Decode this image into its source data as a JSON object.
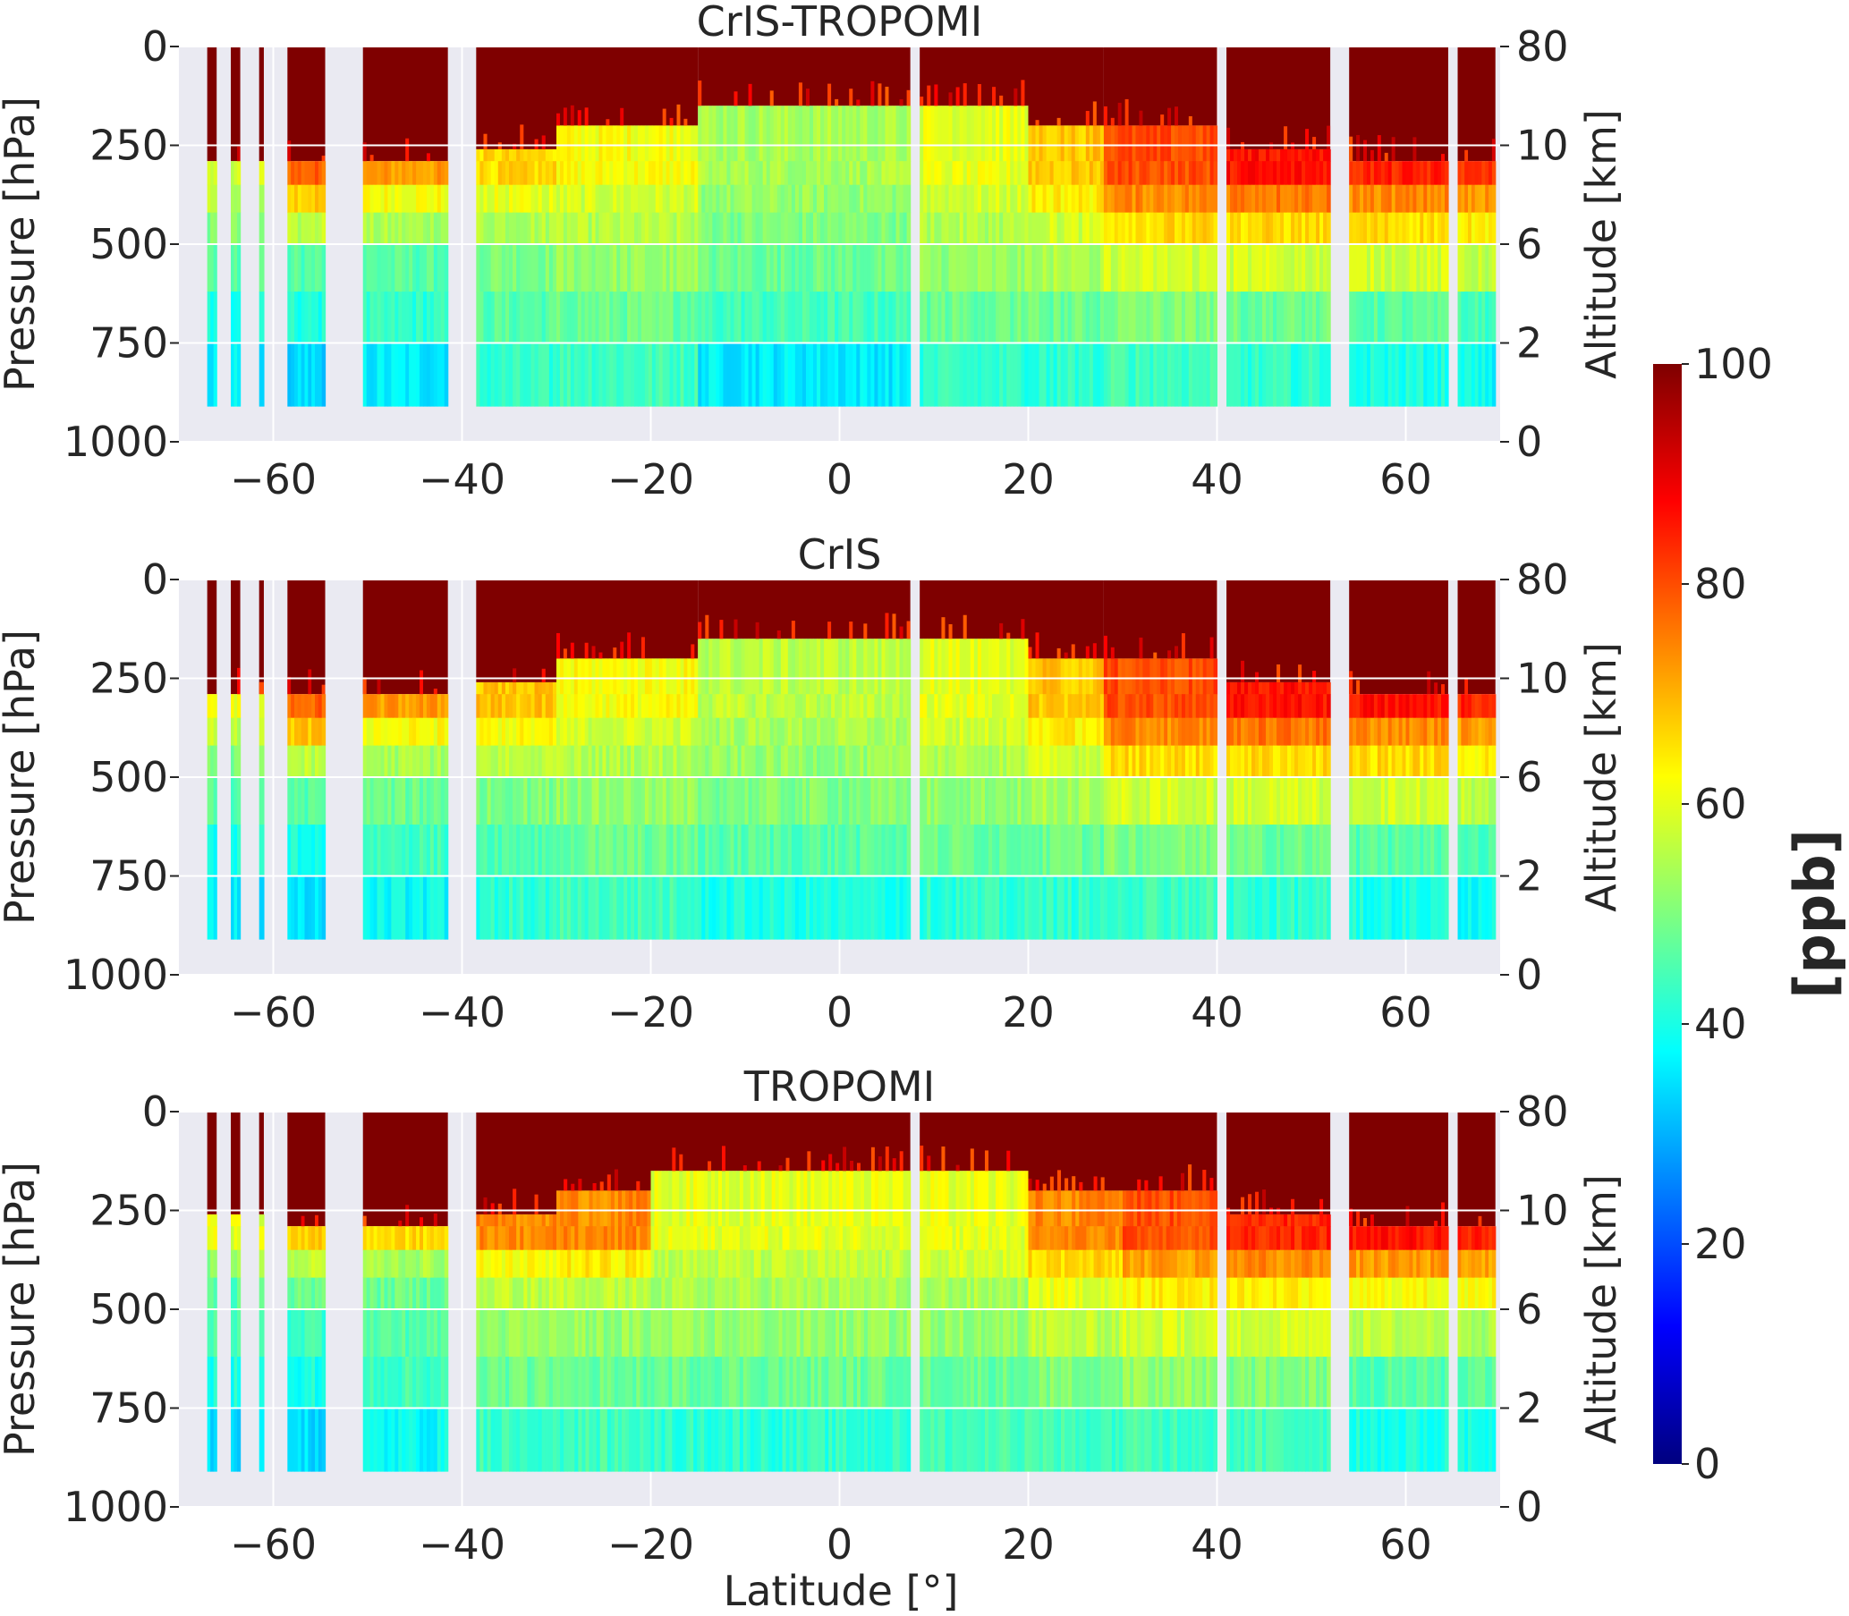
{
  "figure": {
    "xlabel": "Latitude [°]",
    "colorbar": {
      "label": "[ppb]",
      "min": 0,
      "max": 100,
      "ticks": [
        "0",
        "20",
        "40",
        "60",
        "80",
        "100"
      ],
      "colormap": "jet",
      "colors": [
        "#00007f",
        "#0000ff",
        "#007fff",
        "#00ffff",
        "#7fff7f",
        "#ffff00",
        "#ff7f00",
        "#ff0000",
        "#7f0000"
      ]
    },
    "background_color": "#eaeaf2",
    "gridline_color": "#ffffff"
  },
  "chart_data": [
    {
      "type": "heatmap",
      "title": "CrIS-TROPOMI",
      "ylabel": "Pressure [hPa]",
      "ylabel_right": "Altitude [km]",
      "x_ticks": [
        "−60",
        "−40",
        "−20",
        "0",
        "20",
        "40",
        "60"
      ],
      "y_ticks": [
        "0",
        "250",
        "500",
        "750",
        "1000"
      ],
      "y2_ticks": [
        "80",
        "10",
        "6",
        "2",
        "0"
      ],
      "xlim": [
        -70,
        70
      ],
      "ylim": [
        1000,
        0
      ],
      "z_units": "ppb",
      "levels_hPa": [
        0,
        150,
        200,
        260,
        290,
        350,
        420,
        500,
        620,
        750,
        910
      ],
      "latitude_bands": [
        {
          "lat": [
            -67,
            -66
          ],
          "tropopause_hPa": 290,
          "profile_ppb": [
            58,
            55,
            50,
            46,
            40,
            36
          ]
        },
        {
          "lat": [
            -64.5,
            -63.5
          ],
          "tropopause_hPa": 290,
          "profile_ppb": [
            58,
            55,
            50,
            46,
            40,
            36
          ]
        },
        {
          "lat": [
            -61.5,
            -61
          ],
          "tropopause_hPa": 290,
          "profile_ppb": [
            58,
            55,
            50,
            46,
            40,
            36
          ]
        },
        {
          "lat": [
            -58.5,
            -54.5
          ],
          "tropopause_hPa": 290,
          "profile_ppb": [
            78,
            68,
            56,
            46,
            40,
            34
          ]
        },
        {
          "lat": [
            -50.5,
            -41.5
          ],
          "tropopause_hPa": 290,
          "profile_ppb": [
            72,
            62,
            54,
            46,
            42,
            36
          ]
        },
        {
          "lat": [
            -38.5,
            -30
          ],
          "tropopause_hPa": 260,
          "profile_ppb": [
            66,
            60,
            55,
            50,
            46,
            42
          ]
        },
        {
          "lat": [
            -30,
            -15
          ],
          "tropopause_hPa": 200,
          "profile_ppb": [
            62,
            58,
            55,
            52,
            48,
            44
          ]
        },
        {
          "lat": [
            -15,
            7.5
          ],
          "tropopause_hPa": 150,
          "profile_ppb": [
            54,
            52,
            50,
            48,
            44,
            36
          ]
        },
        {
          "lat": [
            8.5,
            20
          ],
          "tropopause_hPa": 150,
          "profile_ppb": [
            60,
            58,
            55,
            52,
            48,
            42
          ]
        },
        {
          "lat": [
            20,
            28
          ],
          "tropopause_hPa": 200,
          "profile_ppb": [
            68,
            64,
            58,
            54,
            48,
            42
          ]
        },
        {
          "lat": [
            28,
            40
          ],
          "tropopause_hPa": 200,
          "profile_ppb": [
            80,
            74,
            66,
            58,
            50,
            44
          ]
        },
        {
          "lat": [
            41,
            52
          ],
          "tropopause_hPa": 260,
          "profile_ppb": [
            86,
            76,
            66,
            58,
            48,
            42
          ]
        },
        {
          "lat": [
            54,
            64.5
          ],
          "tropopause_hPa": 290,
          "profile_ppb": [
            84,
            74,
            66,
            58,
            46,
            40
          ]
        },
        {
          "lat": [
            65.5,
            69.5
          ],
          "tropopause_hPa": 290,
          "profile_ppb": [
            82,
            72,
            64,
            56,
            44,
            38
          ]
        }
      ]
    },
    {
      "type": "heatmap",
      "title": "CrIS",
      "ylabel": "Pressure [hPa]",
      "ylabel_right": "Altitude [km]",
      "x_ticks": [
        "−60",
        "−40",
        "−20",
        "0",
        "20",
        "40",
        "60"
      ],
      "y_ticks": [
        "0",
        "250",
        "500",
        "750",
        "1000"
      ],
      "y2_ticks": [
        "80",
        "10",
        "6",
        "2",
        "0"
      ],
      "xlim": [
        -70,
        70
      ],
      "ylim": [
        1000,
        0
      ],
      "z_units": "ppb",
      "levels_hPa": [
        0,
        150,
        200,
        260,
        290,
        350,
        420,
        500,
        620,
        750,
        910
      ],
      "latitude_bands": [
        {
          "lat": [
            -67,
            -66
          ],
          "tropopause_hPa": 290,
          "profile_ppb": [
            60,
            56,
            50,
            46,
            40,
            36
          ]
        },
        {
          "lat": [
            -64.5,
            -63.5
          ],
          "tropopause_hPa": 290,
          "profile_ppb": [
            60,
            56,
            50,
            46,
            40,
            36
          ]
        },
        {
          "lat": [
            -61.5,
            -61
          ],
          "tropopause_hPa": 290,
          "profile_ppb": [
            60,
            56,
            50,
            46,
            40,
            36
          ]
        },
        {
          "lat": [
            -58.5,
            -54.5
          ],
          "tropopause_hPa": 290,
          "profile_ppb": [
            78,
            68,
            56,
            46,
            40,
            34
          ]
        },
        {
          "lat": [
            -50.5,
            -41.5
          ],
          "tropopause_hPa": 290,
          "profile_ppb": [
            72,
            62,
            54,
            48,
            44,
            38
          ]
        },
        {
          "lat": [
            -38.5,
            -30
          ],
          "tropopause_hPa": 260,
          "profile_ppb": [
            68,
            62,
            56,
            50,
            46,
            42
          ]
        },
        {
          "lat": [
            -30,
            -15
          ],
          "tropopause_hPa": 200,
          "profile_ppb": [
            62,
            58,
            55,
            52,
            48,
            44
          ]
        },
        {
          "lat": [
            -15,
            7.5
          ],
          "tropopause_hPa": 150,
          "profile_ppb": [
            56,
            54,
            52,
            50,
            46,
            40
          ]
        },
        {
          "lat": [
            8.5,
            20
          ],
          "tropopause_hPa": 150,
          "profile_ppb": [
            60,
            58,
            55,
            52,
            48,
            42
          ]
        },
        {
          "lat": [
            20,
            28
          ],
          "tropopause_hPa": 200,
          "profile_ppb": [
            68,
            64,
            58,
            54,
            48,
            42
          ]
        },
        {
          "lat": [
            28,
            40
          ],
          "tropopause_hPa": 200,
          "profile_ppb": [
            80,
            74,
            66,
            58,
            50,
            44
          ]
        },
        {
          "lat": [
            41,
            52
          ],
          "tropopause_hPa": 260,
          "profile_ppb": [
            86,
            76,
            66,
            58,
            48,
            42
          ]
        },
        {
          "lat": [
            54,
            64.5
          ],
          "tropopause_hPa": 290,
          "profile_ppb": [
            86,
            74,
            66,
            58,
            46,
            40
          ]
        },
        {
          "lat": [
            65.5,
            69.5
          ],
          "tropopause_hPa": 290,
          "profile_ppb": [
            84,
            72,
            64,
            56,
            44,
            38
          ]
        }
      ]
    },
    {
      "type": "heatmap",
      "title": "TROPOMI",
      "ylabel": "Pressure [hPa]",
      "ylabel_right": "Altitude [km]",
      "x_ticks": [
        "−60",
        "−40",
        "−20",
        "0",
        "20",
        "40",
        "60"
      ],
      "y_ticks": [
        "0",
        "250",
        "500",
        "750",
        "1000"
      ],
      "y2_ticks": [
        "80",
        "10",
        "6",
        "2",
        "0"
      ],
      "xlim": [
        -70,
        70
      ],
      "ylim": [
        1000,
        0
      ],
      "z_units": "ppb",
      "levels_hPa": [
        0,
        150,
        200,
        260,
        290,
        350,
        420,
        500,
        620,
        750,
        910
      ],
      "latitude_bands": [
        {
          "lat": [
            -67,
            -66
          ],
          "tropopause_hPa": 260,
          "profile_ppb": [
            60,
            52,
            46,
            44,
            40,
            34
          ]
        },
        {
          "lat": [
            -64.5,
            -63.5
          ],
          "tropopause_hPa": 260,
          "profile_ppb": [
            60,
            52,
            46,
            44,
            40,
            34
          ]
        },
        {
          "lat": [
            -61.5,
            -61
          ],
          "tropopause_hPa": 260,
          "profile_ppb": [
            60,
            52,
            46,
            44,
            40,
            34
          ]
        },
        {
          "lat": [
            -58.5,
            -54.5
          ],
          "tropopause_hPa": 290,
          "profile_ppb": [
            68,
            56,
            48,
            44,
            40,
            34
          ]
        },
        {
          "lat": [
            -50.5,
            -41.5
          ],
          "tropopause_hPa": 290,
          "profile_ppb": [
            66,
            54,
            48,
            46,
            44,
            38
          ]
        },
        {
          "lat": [
            -38.5,
            -30
          ],
          "tropopause_hPa": 260,
          "profile_ppb": [
            74,
            62,
            56,
            52,
            48,
            44
          ]
        },
        {
          "lat": [
            -30,
            -20
          ],
          "tropopause_hPa": 200,
          "profile_ppb": [
            74,
            64,
            56,
            52,
            48,
            44
          ]
        },
        {
          "lat": [
            -20,
            7.5
          ],
          "tropopause_hPa": 150,
          "profile_ppb": [
            60,
            56,
            54,
            52,
            48,
            42
          ]
        },
        {
          "lat": [
            8.5,
            20
          ],
          "tropopause_hPa": 150,
          "profile_ppb": [
            60,
            58,
            54,
            52,
            48,
            44
          ]
        },
        {
          "lat": [
            20,
            30
          ],
          "tropopause_hPa": 200,
          "profile_ppb": [
            74,
            66,
            60,
            56,
            50,
            44
          ]
        },
        {
          "lat": [
            30,
            40
          ],
          "tropopause_hPa": 200,
          "profile_ppb": [
            80,
            72,
            64,
            58,
            52,
            44
          ]
        },
        {
          "lat": [
            41,
            52
          ],
          "tropopause_hPa": 260,
          "profile_ppb": [
            84,
            74,
            64,
            58,
            50,
            44
          ]
        },
        {
          "lat": [
            54,
            64.5
          ],
          "tropopause_hPa": 290,
          "profile_ppb": [
            86,
            72,
            62,
            56,
            46,
            40
          ]
        },
        {
          "lat": [
            65.5,
            69.5
          ],
          "tropopause_hPa": 290,
          "profile_ppb": [
            84,
            72,
            62,
            54,
            46,
            40
          ]
        }
      ]
    }
  ]
}
